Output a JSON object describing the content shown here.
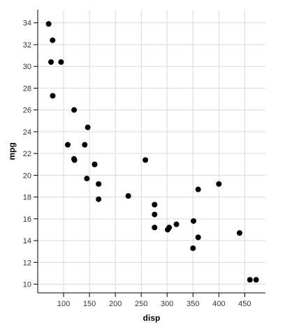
{
  "chart_data": {
    "type": "scatter",
    "title": "",
    "xlabel": "disp",
    "ylabel": "mpg",
    "xlim": [
      50,
      490
    ],
    "ylim": [
      9.2,
      35.2
    ],
    "xticks": [
      100,
      150,
      200,
      250,
      300,
      350,
      400,
      450
    ],
    "yticks": [
      10,
      12,
      14,
      16,
      18,
      20,
      22,
      24,
      26,
      28,
      30,
      32,
      34
    ],
    "grid": true,
    "point_color": "#000000",
    "grid_color": "#d9d9d9",
    "points": [
      {
        "x": 71.1,
        "y": 33.9
      },
      {
        "x": 75.7,
        "y": 30.4
      },
      {
        "x": 78.7,
        "y": 32.4
      },
      {
        "x": 79.0,
        "y": 27.3
      },
      {
        "x": 95.1,
        "y": 30.4
      },
      {
        "x": 108.0,
        "y": 22.8
      },
      {
        "x": 120.1,
        "y": 21.5
      },
      {
        "x": 120.3,
        "y": 26.0
      },
      {
        "x": 121.0,
        "y": 21.4
      },
      {
        "x": 140.8,
        "y": 22.8
      },
      {
        "x": 146.7,
        "y": 24.4
      },
      {
        "x": 145.0,
        "y": 19.7
      },
      {
        "x": 160.0,
        "y": 21.0
      },
      {
        "x": 160.0,
        "y": 21.0
      },
      {
        "x": 167.6,
        "y": 19.2
      },
      {
        "x": 167.6,
        "y": 17.8
      },
      {
        "x": 225.0,
        "y": 18.1
      },
      {
        "x": 258.0,
        "y": 21.4
      },
      {
        "x": 275.8,
        "y": 16.4
      },
      {
        "x": 275.8,
        "y": 17.3
      },
      {
        "x": 275.8,
        "y": 15.2
      },
      {
        "x": 301.0,
        "y": 15.0
      },
      {
        "x": 304.0,
        "y": 15.2
      },
      {
        "x": 318.0,
        "y": 15.5
      },
      {
        "x": 350.0,
        "y": 13.3
      },
      {
        "x": 351.0,
        "y": 15.8
      },
      {
        "x": 360.0,
        "y": 18.7
      },
      {
        "x": 360.0,
        "y": 14.3
      },
      {
        "x": 400.0,
        "y": 19.2
      },
      {
        "x": 440.0,
        "y": 14.7
      },
      {
        "x": 460.0,
        "y": 10.4
      },
      {
        "x": 472.0,
        "y": 10.4
      }
    ]
  }
}
